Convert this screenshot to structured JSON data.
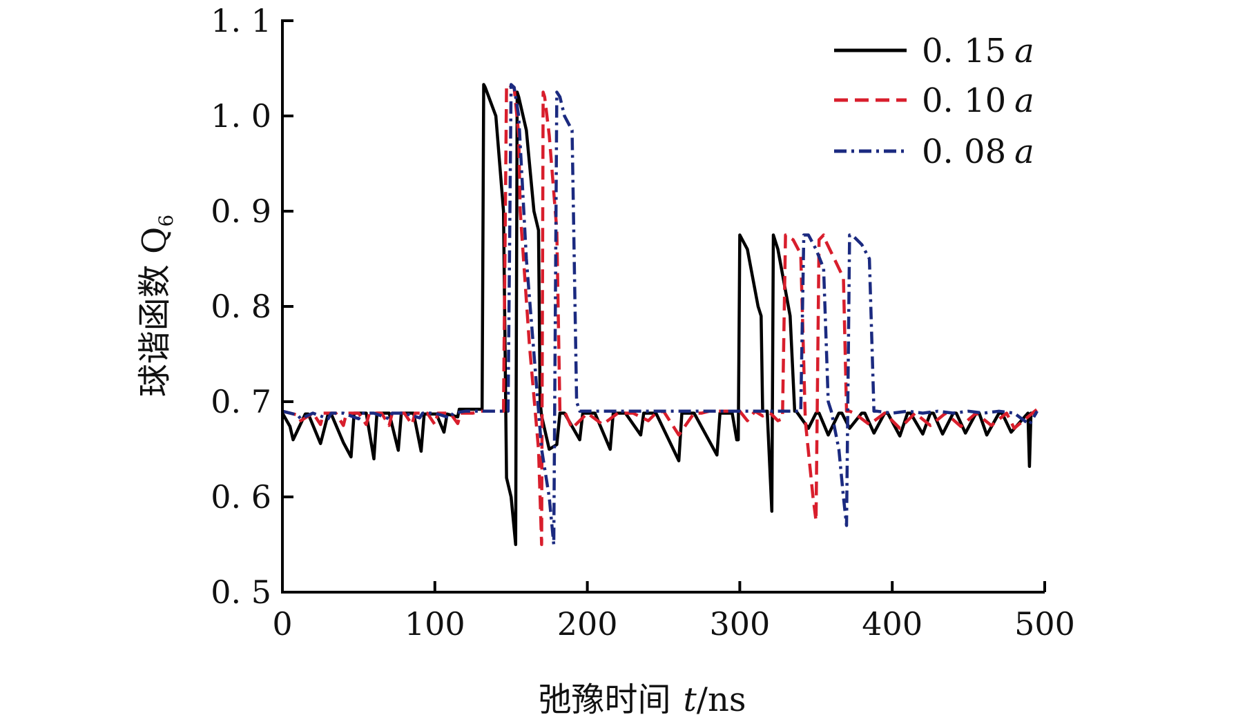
{
  "chart_data": {
    "type": "line",
    "xlabel": "弛豫时间",
    "xlabel_var": "t",
    "xlabel_unit": "/ns",
    "ylabel": "球谐函数 Q",
    "ylabel_sub": "6",
    "xlim": [
      0,
      500
    ],
    "ylim": [
      0.5,
      1.1
    ],
    "x_ticks": [
      0,
      100,
      200,
      300,
      400,
      500
    ],
    "x_tick_labels": [
      "0",
      "100",
      "200",
      "300",
      "400",
      "500"
    ],
    "y_ticks": [
      0.5,
      0.6,
      0.7,
      0.8,
      0.9,
      1.0,
      1.1
    ],
    "y_tick_labels": [
      "0. 5",
      "0. 6",
      "0. 7",
      "0. 8",
      "0. 9",
      "1. 0",
      "1. 1"
    ],
    "grid": false,
    "legend_position": "top-right",
    "series": [
      {
        "name": "0. 15 a",
        "name_num": "0. 15",
        "name_var": "a",
        "color": "#000000",
        "dash": "solid",
        "x": [
          0,
          5,
          7,
          15,
          17,
          25,
          30,
          32,
          40,
          45,
          47,
          55,
          60,
          62,
          70,
          76,
          78,
          86,
          91,
          93,
          101,
          106,
          108,
          115,
          116,
          117,
          131,
          132,
          133,
          140,
          145,
          147,
          150,
          153,
          154,
          155,
          160,
          165,
          168,
          169,
          170,
          175,
          180,
          182,
          185,
          195,
          197,
          205,
          215,
          217,
          225,
          235,
          237,
          245,
          260,
          262,
          270,
          285,
          287,
          295,
          298,
          299,
          300,
          305,
          312,
          314,
          315,
          318,
          321,
          322,
          325,
          333,
          336,
          337,
          345,
          350,
          352,
          358,
          365,
          367,
          372,
          380,
          382,
          388,
          395,
          397,
          405,
          410,
          412,
          420,
          425,
          427,
          433,
          440,
          442,
          448,
          455,
          457,
          462,
          470,
          472,
          478,
          489,
          490,
          491,
          495
        ],
        "y": [
          0.688,
          0.674,
          0.66,
          0.687,
          0.687,
          0.656,
          0.687,
          0.687,
          0.657,
          0.642,
          0.688,
          0.688,
          0.64,
          0.688,
          0.688,
          0.649,
          0.688,
          0.688,
          0.648,
          0.687,
          0.687,
          0.668,
          0.687,
          0.684,
          0.692,
          0.692,
          0.692,
          1.033,
          1.03,
          1.0,
          0.9,
          0.62,
          0.6,
          0.55,
          1.025,
          1.02,
          0.985,
          0.9,
          0.88,
          0.7,
          0.685,
          0.65,
          0.655,
          0.688,
          0.688,
          0.66,
          0.688,
          0.688,
          0.65,
          0.688,
          0.688,
          0.665,
          0.688,
          0.688,
          0.638,
          0.688,
          0.688,
          0.644,
          0.688,
          0.688,
          0.66,
          0.66,
          0.875,
          0.86,
          0.8,
          0.79,
          0.69,
          0.69,
          0.585,
          0.875,
          0.86,
          0.79,
          0.69,
          0.69,
          0.672,
          0.688,
          0.688,
          0.665,
          0.688,
          0.688,
          0.672,
          0.688,
          0.688,
          0.667,
          0.688,
          0.688,
          0.664,
          0.688,
          0.688,
          0.666,
          0.688,
          0.688,
          0.666,
          0.688,
          0.688,
          0.667,
          0.688,
          0.688,
          0.665,
          0.688,
          0.688,
          0.668,
          0.688,
          0.632,
          0.688,
          0.688
        ]
      },
      {
        "name": "0. 10 a",
        "name_num": "0. 10",
        "name_var": "a",
        "color": "#d81e2c",
        "dash": "dashed",
        "x": [
          0,
          10,
          12,
          20,
          25,
          27,
          35,
          40,
          42,
          50,
          55,
          57,
          65,
          70,
          72,
          80,
          85,
          87,
          95,
          100,
          102,
          110,
          115,
          117,
          125,
          130,
          135,
          140,
          145,
          147,
          152,
          155,
          156,
          162,
          168,
          170,
          171,
          172,
          175,
          180,
          182,
          185,
          190,
          200,
          210,
          220,
          230,
          240,
          245,
          250,
          260,
          270,
          275,
          280,
          290,
          300,
          305,
          310,
          315,
          320,
          325,
          328,
          330,
          335,
          340,
          343,
          348,
          350,
          352,
          355,
          356,
          362,
          368,
          370,
          372,
          375,
          385,
          395,
          405,
          415,
          425,
          435,
          445,
          455,
          465,
          475,
          480,
          495
        ],
        "y": [
          0.69,
          0.686,
          0.68,
          0.688,
          0.676,
          0.688,
          0.688,
          0.675,
          0.688,
          0.688,
          0.676,
          0.688,
          0.688,
          0.675,
          0.688,
          0.688,
          0.676,
          0.688,
          0.688,
          0.676,
          0.688,
          0.688,
          0.677,
          0.688,
          0.688,
          0.69,
          0.69,
          0.69,
          0.69,
          1.033,
          1.03,
          0.98,
          0.9,
          0.76,
          0.65,
          0.55,
          1.025,
          1.02,
          0.98,
          0.88,
          0.69,
          0.69,
          0.672,
          0.688,
          0.676,
          0.688,
          0.688,
          0.68,
          0.688,
          0.69,
          0.665,
          0.688,
          0.688,
          0.69,
          0.69,
          0.69,
          0.68,
          0.69,
          0.685,
          0.688,
          0.68,
          0.682,
          0.875,
          0.87,
          0.855,
          0.68,
          0.6,
          0.575,
          0.87,
          0.875,
          0.87,
          0.85,
          0.83,
          0.69,
          0.69,
          0.688,
          0.676,
          0.688,
          0.672,
          0.688,
          0.675,
          0.688,
          0.674,
          0.688,
          0.675,
          0.688,
          0.672,
          0.692
        ]
      },
      {
        "name": "0. 08 a",
        "name_num": "0. 08",
        "name_var": "a",
        "color": "#1b2a80",
        "dash": "dashdot",
        "x": [
          0,
          10,
          12,
          20,
          30,
          32,
          40,
          50,
          52,
          60,
          70,
          72,
          80,
          90,
          92,
          100,
          110,
          112,
          120,
          130,
          140,
          145,
          148,
          150,
          152,
          155,
          160,
          170,
          175,
          178,
          180,
          182,
          185,
          190,
          193,
          195,
          200,
          210,
          220,
          230,
          240,
          250,
          260,
          270,
          280,
          290,
          300,
          310,
          320,
          330,
          340,
          342,
          345,
          350,
          355,
          358,
          360,
          365,
          368,
          370,
          372,
          375,
          380,
          385,
          388,
          390,
          400,
          410,
          420,
          430,
          440,
          450,
          460,
          470,
          480,
          490,
          495
        ],
        "y": [
          0.69,
          0.686,
          0.682,
          0.688,
          0.682,
          0.688,
          0.688,
          0.682,
          0.688,
          0.688,
          0.682,
          0.688,
          0.688,
          0.683,
          0.688,
          0.688,
          0.683,
          0.688,
          0.69,
          0.69,
          0.69,
          0.69,
          0.69,
          1.033,
          1.03,
          1.0,
          0.85,
          0.65,
          0.6,
          0.55,
          1.025,
          1.02,
          1.0,
          0.985,
          0.7,
          0.69,
          0.69,
          0.69,
          0.69,
          0.69,
          0.69,
          0.69,
          0.69,
          0.69,
          0.69,
          0.69,
          0.69,
          0.69,
          0.69,
          0.69,
          0.69,
          0.875,
          0.875,
          0.86,
          0.84,
          0.7,
          0.69,
          0.65,
          0.6,
          0.57,
          0.875,
          0.873,
          0.865,
          0.85,
          0.69,
          0.69,
          0.688,
          0.69,
          0.688,
          0.69,
          0.688,
          0.69,
          0.688,
          0.69,
          0.688,
          0.676,
          0.69
        ]
      }
    ]
  }
}
